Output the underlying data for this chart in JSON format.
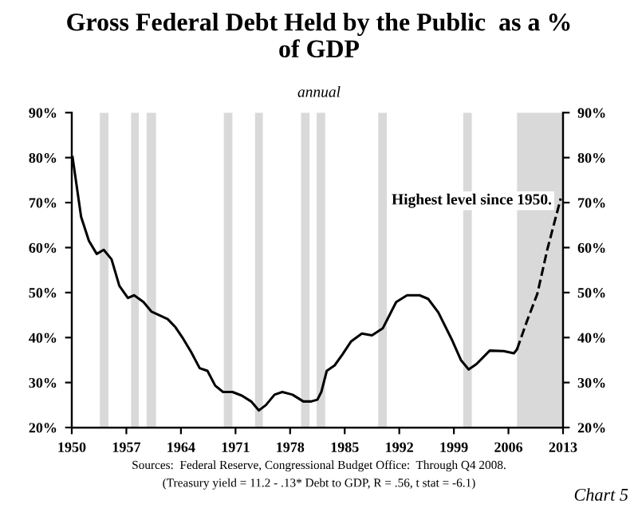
{
  "chart_data": {
    "type": "line",
    "title": "Gross Federal Debt Held by the Public  as a %\nof GDP",
    "subtitle": "annual",
    "series": [
      {
        "color": "#000000",
        "line_style": "solid",
        "x": [
          1950.1,
          1951.2,
          1952.2,
          1953.2,
          1954.1,
          1955.1,
          1956.1,
          1957.2,
          1958.0,
          1959.2,
          1960.2,
          1962.3,
          1963.3,
          1964.3,
          1965.3,
          1966.4,
          1967.4,
          1968.4,
          1969.4,
          1970.6,
          1971.8,
          1973.0,
          1974.0,
          1974.9,
          1976.0,
          1977.0,
          1978.3,
          1979.7,
          1980.7,
          1981.5,
          1982.0,
          1982.7,
          1983.7,
          1984.7,
          1985.8,
          1987.2,
          1988.5,
          1989.9,
          1991.6,
          1993.0,
          1994.6,
          1995.7,
          1997.0,
          1998.7,
          1999.9,
          2000.9,
          2001.9,
          2003.6,
          2005.4,
          2006.7,
          2007.1
        ],
        "values": [
          80.1,
          66.8,
          61.5,
          58.6,
          59.5,
          57.4,
          51.5,
          48.8,
          49.4,
          47.9,
          45.8,
          44.1,
          42.3,
          39.7,
          36.8,
          33.2,
          32.6,
          29.3,
          27.9,
          27.9,
          27.1,
          25.8,
          23.8,
          25.0,
          27.3,
          27.9,
          27.3,
          25.8,
          25.8,
          26.2,
          27.9,
          32.6,
          33.8,
          36.2,
          39.1,
          40.9,
          40.5,
          42.1,
          47.9,
          49.4,
          49.4,
          48.6,
          45.6,
          39.7,
          35.0,
          32.9,
          34.1,
          37.1,
          37.0,
          36.5,
          37.4
        ]
      },
      {
        "color": "#000000",
        "line_style": "dashed",
        "x": [
          2007.1,
          2008.3,
          2009.7,
          2011.0,
          2012.7
        ],
        "values": [
          37.4,
          43.3,
          49.7,
          59.7,
          70.9
        ]
      }
    ],
    "xlim": [
      1950,
      2013
    ],
    "xticks": [
      1950,
      1957,
      1964,
      1971,
      1978,
      1985,
      1992,
      1999,
      2006,
      2013
    ],
    "ylim": [
      20,
      90
    ],
    "yticks": [
      {
        "value": 20,
        "label": "20%"
      },
      {
        "value": 30,
        "label": "30%"
      },
      {
        "value": 40,
        "label": "40%"
      },
      {
        "value": 50,
        "label": "50%"
      },
      {
        "value": 60,
        "label": "60%"
      },
      {
        "value": 70,
        "label": "70%"
      },
      {
        "value": 80,
        "label": "80%"
      },
      {
        "value": 90,
        "label": "90%"
      }
    ],
    "y2lim": [
      20,
      90
    ],
    "y2ticks": [
      {
        "value": 20,
        "label": "20%"
      },
      {
        "value": 30,
        "label": "30%"
      },
      {
        "value": 40,
        "label": "40%"
      },
      {
        "value": 50,
        "label": "50%"
      },
      {
        "value": 60,
        "label": "60%"
      },
      {
        "value": 70,
        "label": "70%"
      },
      {
        "value": 80,
        "label": "80%"
      },
      {
        "value": 90,
        "label": "90%"
      }
    ],
    "bands": [
      {
        "axis": "x",
        "from": 1953.6,
        "to": 1954.7,
        "color": "#d9d9d9"
      },
      {
        "axis": "x",
        "from": 1957.6,
        "to": 1958.6,
        "color": "#d9d9d9"
      },
      {
        "axis": "x",
        "from": 1959.6,
        "to": 1960.8,
        "color": "#d9d9d9"
      },
      {
        "axis": "x",
        "from": 1969.5,
        "to": 1970.6,
        "color": "#d9d9d9"
      },
      {
        "axis": "x",
        "from": 1973.5,
        "to": 1974.5,
        "color": "#d9d9d9"
      },
      {
        "axis": "x",
        "from": 1979.4,
        "to": 1980.5,
        "color": "#d9d9d9"
      },
      {
        "axis": "x",
        "from": 1981.4,
        "to": 1982.5,
        "color": "#d9d9d9"
      },
      {
        "axis": "x",
        "from": 1989.3,
        "to": 1990.4,
        "color": "#d9d9d9"
      },
      {
        "axis": "x",
        "from": 2000.2,
        "to": 2001.3,
        "color": "#d9d9d9"
      },
      {
        "axis": "x",
        "from": 2007.1,
        "to": 2013,
        "color": "#d9d9d9"
      }
    ],
    "annotations": [
      {
        "text": "Highest level since 1950.",
        "x": 2012.7,
        "y": 70.9
      },
      "Sources:  Federal Reserve, Congressional Budget Office:  Through Q4 2008.",
      "(Treasury yield = 11.2 - .13* Debt to GDP, R = .56, t stat = -6.1)",
      "Chart 5"
    ],
    "grid": false,
    "legend": false
  }
}
